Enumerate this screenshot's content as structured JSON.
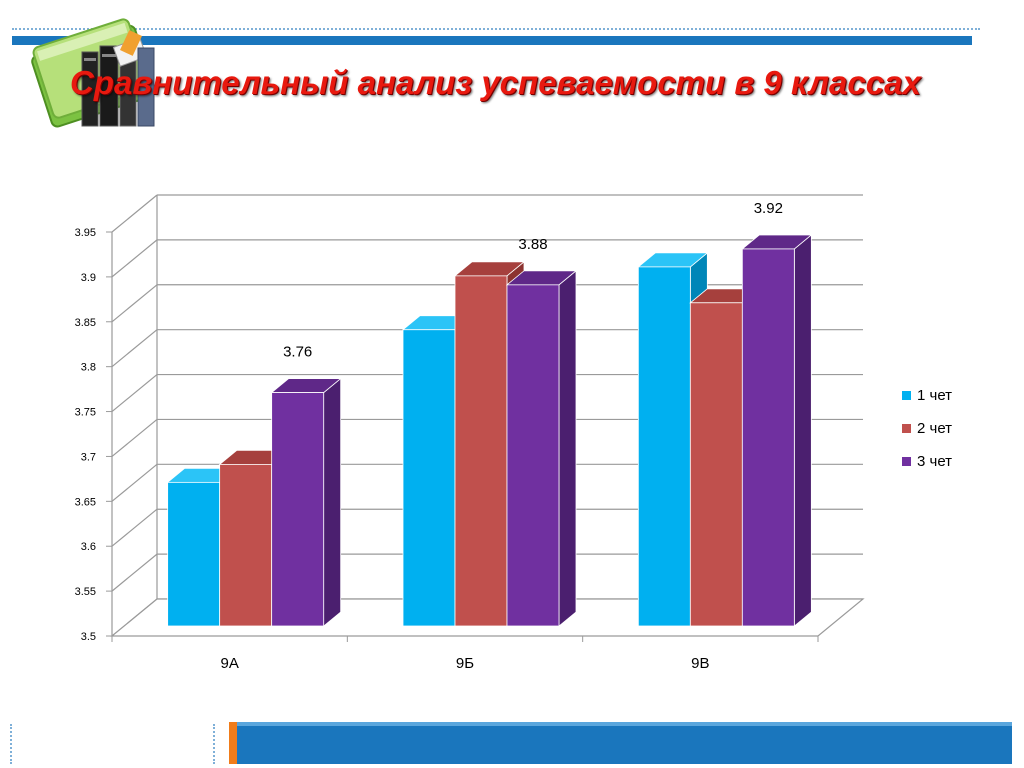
{
  "slide": {
    "title": "Сравнительный анализ успеваемости в 9 классах"
  },
  "chart_data": {
    "type": "bar",
    "categories": [
      "9А",
      "9Б",
      "9В"
    ],
    "series": [
      {
        "name": "1 чет",
        "values": [
          3.66,
          3.83,
          3.9
        ],
        "color": "#00b0f0",
        "side_color": "#0086b8",
        "top_color": "#2bc4f7"
      },
      {
        "name": "2 чет",
        "values": [
          3.68,
          3.89,
          3.86
        ],
        "color": "#c0504d",
        "side_color": "#8c3330",
        "top_color": "#a6403d"
      },
      {
        "name": "3 чет",
        "values": [
          3.76,
          3.88,
          3.92
        ],
        "color": "#7030a0",
        "side_color": "#4b1f6f",
        "top_color": "#5f2888"
      }
    ],
    "data_labels": [
      {
        "category": "9А",
        "series": "3 чет",
        "text": "3.76"
      },
      {
        "category": "9Б",
        "series": "3 чет",
        "text": "3.88"
      },
      {
        "category": "9В",
        "series": "3 чет",
        "text": "3.92"
      }
    ],
    "ylim": [
      3.5,
      3.95
    ],
    "yticks": [
      3.5,
      3.55,
      3.6,
      3.65,
      3.7,
      3.75,
      3.8,
      3.85,
      3.9,
      3.95
    ],
    "ytick_labels": [
      "3.5",
      "3.55",
      "3.6",
      "3.65",
      "3.7",
      "3.75",
      "3.8",
      "3.85",
      "3.9",
      "3.95"
    ],
    "grid": true,
    "legend_position": "right",
    "three_d": true,
    "title": "",
    "xlabel": "",
    "ylabel": ""
  }
}
